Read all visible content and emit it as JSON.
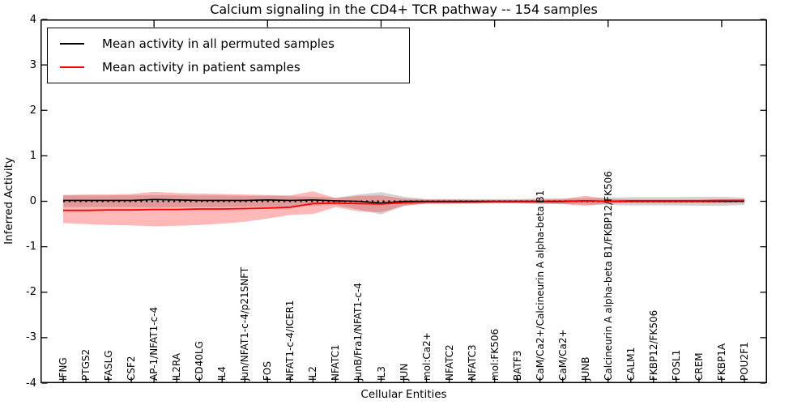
{
  "title": "Calcium signaling in the CD4+ TCR pathway -- 154 samples",
  "legend": {
    "entries": [
      {
        "label": "Mean activity in all permuted samples",
        "color": "#000000"
      },
      {
        "label": "Mean activity in patient samples",
        "color": "#ff0000"
      }
    ]
  },
  "chart_data": {
    "type": "line",
    "title": "Calcium signaling in the CD4+ TCR pathway -- 154 samples",
    "xlabel": "Cellular Entities",
    "ylabel": "Inferred Activity",
    "ylim": [
      -4,
      4
    ],
    "xlim": [
      0,
      32
    ],
    "yticks": [
      4,
      3,
      2,
      1,
      0,
      -1,
      -2,
      -3,
      -4
    ],
    "xticks_major": [
      5,
      10,
      15,
      20,
      25,
      30
    ],
    "grid": false,
    "legend_position": "upper left",
    "categories": [
      "IFNG",
      "PTGS2",
      "FASLG",
      "CSF2",
      "AP-1/NFAT1-c-4",
      "IL2RA",
      "CD40LG",
      "IL4",
      "Jun/NFAT1-c-4/p21SNFT",
      "FOS",
      "NFAT1-c-4/ICER1",
      "IL2",
      "NFATC1",
      "JunB/Fra1/NFAT1-c-4",
      "IL3",
      "JUN",
      "mol:Ca2+",
      "NFATC2",
      "NFATC3",
      "mol:FK506",
      "BATF3",
      "CaM/Ca2+/Calcineurin A alpha-beta B1",
      "CaM/Ca2+",
      "JUNB",
      "Calcineurin A alpha-beta B1/FKBP12/FK506",
      "CALM1",
      "FKBP12/FK506",
      "FOSL1",
      "CREM",
      "FKBP1A",
      "POU2F1"
    ],
    "series": [
      {
        "name": "Mean activity in all permuted samples",
        "color": "#000000",
        "values": [
          0.02,
          0.02,
          0.02,
          0.02,
          0.04,
          0.03,
          0.02,
          0.02,
          0.02,
          0.03,
          0.02,
          0.03,
          0.01,
          0.0,
          -0.04,
          0.0,
          0.0,
          0.0,
          0.0,
          0.0,
          0.0,
          0.0,
          0.0,
          0.01,
          0.0,
          0.0,
          0.0,
          0.0,
          0.0,
          0.0,
          0.0
        ]
      },
      {
        "name": "Mean activity in patient samples",
        "color": "#ff0000",
        "values": [
          -0.2,
          -0.2,
          -0.19,
          -0.19,
          -0.18,
          -0.18,
          -0.17,
          -0.17,
          -0.16,
          -0.15,
          -0.13,
          -0.05,
          -0.04,
          -0.05,
          -0.06,
          -0.03,
          -0.02,
          -0.02,
          -0.02,
          -0.01,
          -0.01,
          -0.01,
          -0.01,
          0.01,
          0.0,
          0.01,
          0.01,
          0.01,
          0.01,
          0.02,
          0.02
        ]
      }
    ],
    "bands": [
      {
        "name": "permuted samples range",
        "color": "rgba(130,130,130,0.35)",
        "upper": [
          0.13,
          0.13,
          0.13,
          0.13,
          0.14,
          0.13,
          0.13,
          0.13,
          0.12,
          0.12,
          0.11,
          0.1,
          0.08,
          0.15,
          0.2,
          0.1,
          0.05,
          0.05,
          0.05,
          0.05,
          0.05,
          0.06,
          0.06,
          0.07,
          0.08,
          0.09,
          0.09,
          0.09,
          0.1,
          0.1,
          0.08
        ],
        "lower": [
          -0.13,
          -0.13,
          -0.13,
          -0.13,
          -0.14,
          -0.13,
          -0.13,
          -0.13,
          -0.12,
          -0.12,
          -0.11,
          -0.1,
          -0.08,
          -0.18,
          -0.29,
          -0.1,
          -0.05,
          -0.05,
          -0.05,
          -0.05,
          -0.05,
          -0.06,
          -0.06,
          -0.07,
          -0.08,
          -0.09,
          -0.09,
          -0.09,
          -0.1,
          -0.1,
          -0.08
        ]
      },
      {
        "name": "patient samples range",
        "color": "rgba(255,40,40,0.33)",
        "upper": [
          0.14,
          0.15,
          0.15,
          0.16,
          0.21,
          0.18,
          0.17,
          0.16,
          0.15,
          0.14,
          0.13,
          0.22,
          0.07,
          0.12,
          0.13,
          0.06,
          0.04,
          0.04,
          0.03,
          0.03,
          0.03,
          0.04,
          0.05,
          0.12,
          0.05,
          0.04,
          0.04,
          0.04,
          0.04,
          0.04,
          0.04
        ],
        "lower": [
          -0.48,
          -0.5,
          -0.52,
          -0.53,
          -0.55,
          -0.54,
          -0.52,
          -0.49,
          -0.45,
          -0.38,
          -0.3,
          -0.28,
          -0.13,
          -0.22,
          -0.24,
          -0.1,
          -0.05,
          -0.05,
          -0.04,
          -0.04,
          -0.04,
          -0.05,
          -0.06,
          -0.1,
          -0.05,
          -0.04,
          -0.04,
          -0.04,
          -0.04,
          -0.04,
          -0.03
        ]
      }
    ],
    "zero_line": {
      "value": 0,
      "style": "dotted",
      "color": "#000000"
    }
  }
}
